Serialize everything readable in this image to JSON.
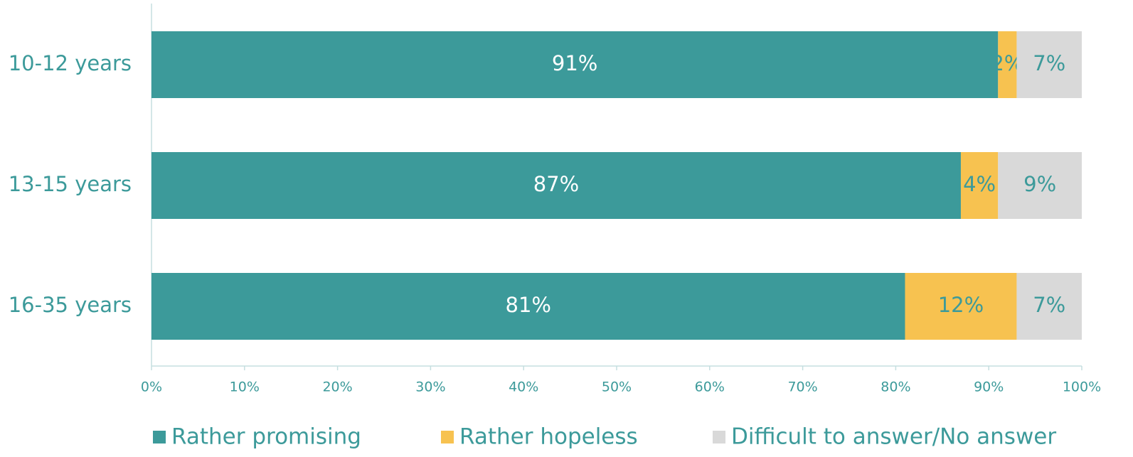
{
  "chart_data": {
    "type": "stacked_barh",
    "categories": [
      "10-12 years",
      "13-15 years",
      "16-35 years"
    ],
    "series": [
      {
        "name": "Rather promising",
        "color": "#3c9a9a",
        "values": [
          91,
          87,
          81
        ],
        "value_labels": [
          "91%",
          "87%",
          "81%"
        ]
      },
      {
        "name": "Rather hopeless",
        "color": "#f7c250",
        "values": [
          2,
          4,
          12
        ],
        "value_labels": [
          "2%",
          "4%",
          "12%"
        ]
      },
      {
        "name": "Difficult to answer/No answer",
        "color": "#d9d9d9",
        "values": [
          7,
          9,
          7
        ],
        "value_labels": [
          "7%",
          "9%",
          "7%"
        ]
      }
    ],
    "xlim": [
      0,
      100
    ],
    "xticks": [
      {
        "value": 0,
        "label": "0%"
      },
      {
        "value": 10,
        "label": "10%"
      },
      {
        "value": 20,
        "label": "20%"
      },
      {
        "value": 30,
        "label": "30%"
      },
      {
        "value": 40,
        "label": "40%"
      },
      {
        "value": 50,
        "label": "50%"
      },
      {
        "value": 60,
        "label": "60%"
      },
      {
        "value": 70,
        "label": "70%"
      },
      {
        "value": 80,
        "label": "80%"
      },
      {
        "value": 90,
        "label": "90%"
      },
      {
        "value": 100,
        "label": "100%"
      }
    ],
    "legend": "bottom"
  }
}
